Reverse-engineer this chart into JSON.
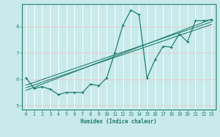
{
  "xlabel": "Humidex (Indice chaleur)",
  "bg_color": "#c8eaea",
  "grid_color": "#e8c8c8",
  "line_color": "#1a7a6e",
  "xlim": [
    -0.5,
    23.5
  ],
  "ylim": [
    4.85,
    8.85
  ],
  "yticks": [
    5,
    6,
    7,
    8
  ],
  "xticks": [
    0,
    1,
    2,
    3,
    4,
    5,
    6,
    7,
    8,
    9,
    10,
    11,
    12,
    13,
    14,
    15,
    16,
    17,
    18,
    19,
    20,
    21,
    22,
    23
  ],
  "curve1_x": [
    0,
    1,
    2,
    3,
    4,
    5,
    6,
    7,
    8,
    9,
    10,
    11,
    12,
    13,
    14,
    15,
    16,
    17,
    18,
    19,
    20,
    21,
    22,
    23
  ],
  "curve1_y": [
    6.05,
    5.65,
    5.72,
    5.62,
    5.42,
    5.5,
    5.5,
    5.5,
    5.82,
    5.75,
    6.05,
    7.0,
    8.05,
    8.62,
    8.45,
    6.05,
    6.75,
    7.25,
    7.22,
    7.72,
    7.42,
    8.22,
    8.22,
    8.25
  ],
  "line1_x": [
    0,
    23
  ],
  "line1_y": [
    5.78,
    8.18
  ],
  "line2_x": [
    0,
    23
  ],
  "line2_y": [
    5.68,
    8.08
  ],
  "line3_x": [
    0,
    23
  ],
  "line3_y": [
    5.58,
    8.28
  ]
}
